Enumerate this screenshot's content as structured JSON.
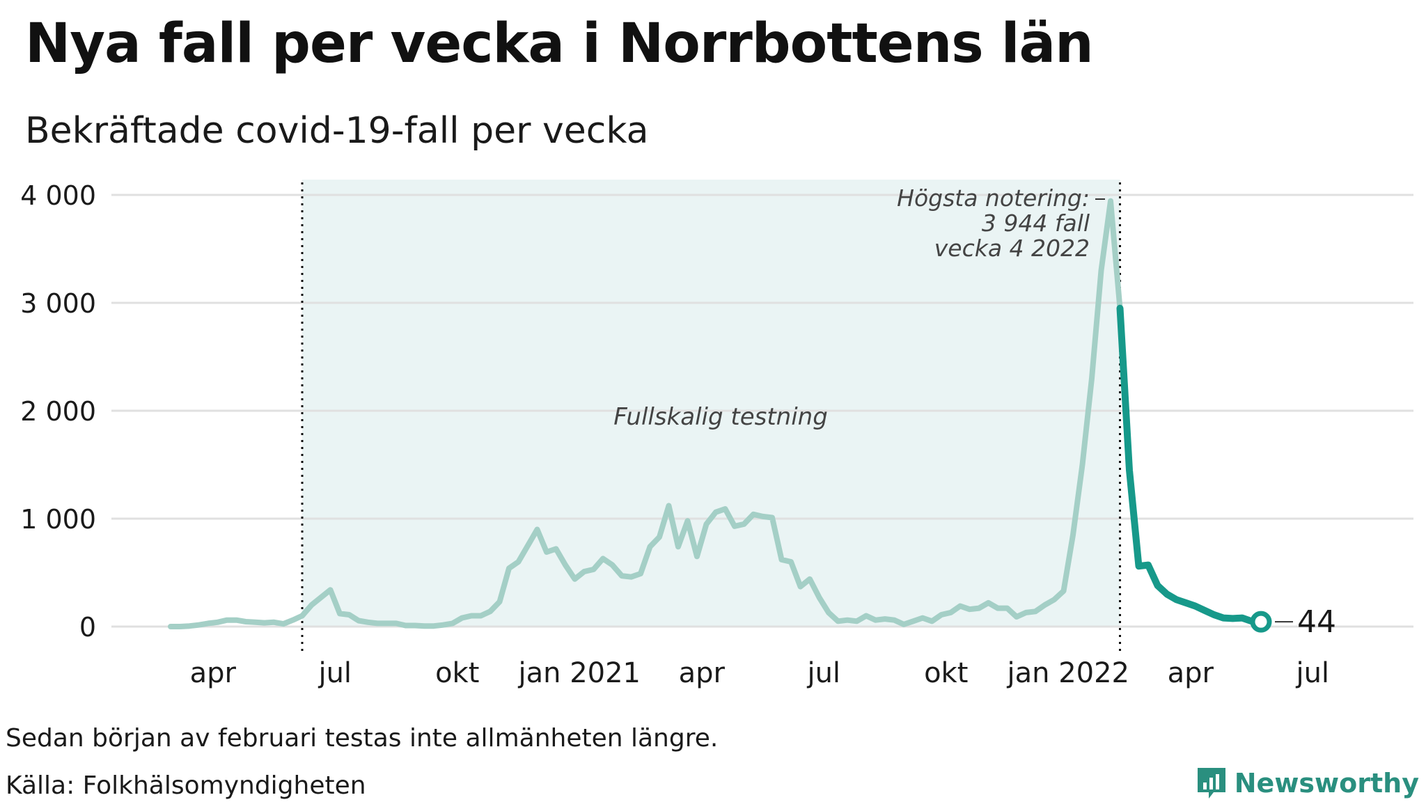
{
  "title": "Nya fall per vecka i Norrbottens län",
  "subtitle": "Bekräftade covid-19-fall per vecka",
  "footnote": "Sedan början av februari testas inte allmänheten längre.",
  "source": "Källa: Folkhälsomyndigheten",
  "brand": "Newsworthy",
  "colors": {
    "light_line": "#a4cfc6",
    "dark_line": "#17998a",
    "shade": "#eaf4f4",
    "grid": "#e0e0e0",
    "text": "#1a1a1a"
  },
  "chart_data": {
    "type": "line",
    "x_unit": "week index (week 0 = late Feb 2020, weekly)",
    "ylim": [
      0,
      4000
    ],
    "yticks": [
      {
        "value": 0,
        "label": "0"
      },
      {
        "value": 1000,
        "label": "1 000"
      },
      {
        "value": 2000,
        "label": "2 000"
      },
      {
        "value": 3000,
        "label": "3 000"
      },
      {
        "value": 4000,
        "label": "4 000"
      }
    ],
    "xticks": [
      {
        "week": 4.5,
        "label": "apr"
      },
      {
        "week": 17.5,
        "label": "jul"
      },
      {
        "week": 30.5,
        "label": "okt"
      },
      {
        "week": 43.5,
        "label": "jan 2021"
      },
      {
        "week": 56.5,
        "label": "apr"
      },
      {
        "week": 69.5,
        "label": "jul"
      },
      {
        "week": 82.5,
        "label": "okt"
      },
      {
        "week": 95.5,
        "label": "jan 2022"
      },
      {
        "week": 108.5,
        "label": "apr"
      },
      {
        "week": 121.5,
        "label": "jul"
      }
    ],
    "series": [
      {
        "style": "light",
        "values": [
          0,
          0,
          5,
          15,
          30,
          40,
          60,
          60,
          45,
          40,
          35,
          40,
          25,
          60,
          100,
          200,
          270,
          340,
          120,
          110,
          55,
          40,
          30,
          30,
          30,
          10,
          10,
          5,
          5,
          15,
          30,
          80,
          100,
          100,
          140,
          230,
          540,
          600,
          750,
          900,
          690,
          720,
          570,
          440,
          510,
          530,
          630,
          570,
          470,
          460,
          490,
          740,
          830,
          1120,
          740,
          980,
          650,
          950,
          1060,
          1090,
          930,
          950,
          1040,
          1020,
          1010,
          620,
          600,
          370,
          440,
          270,
          130,
          50,
          60,
          50,
          100,
          60,
          70,
          60,
          20,
          50,
          80,
          50,
          110,
          130,
          190,
          160,
          170,
          220,
          170,
          170,
          90,
          130,
          140,
          200,
          250,
          330,
          850,
          1500,
          2300,
          3300,
          3944,
          2950
        ]
      },
      {
        "style": "dark",
        "start_week": 101,
        "values": [
          2950,
          1450,
          560,
          570,
          380,
          300,
          250,
          220,
          190,
          150,
          110,
          80,
          75,
          80,
          50,
          44
        ]
      }
    ],
    "shaded_period": {
      "start_week": 14,
      "end_week": 101,
      "label": "Fullskalig testning"
    },
    "vlines": [
      14,
      101
    ],
    "annotation": {
      "week": 100,
      "value": 3944,
      "lines": [
        "Högsta notering:",
        "3 944 fall",
        "vecka 4 2022"
      ]
    },
    "end_label": {
      "week": 116,
      "value": 44,
      "text": "44"
    }
  }
}
